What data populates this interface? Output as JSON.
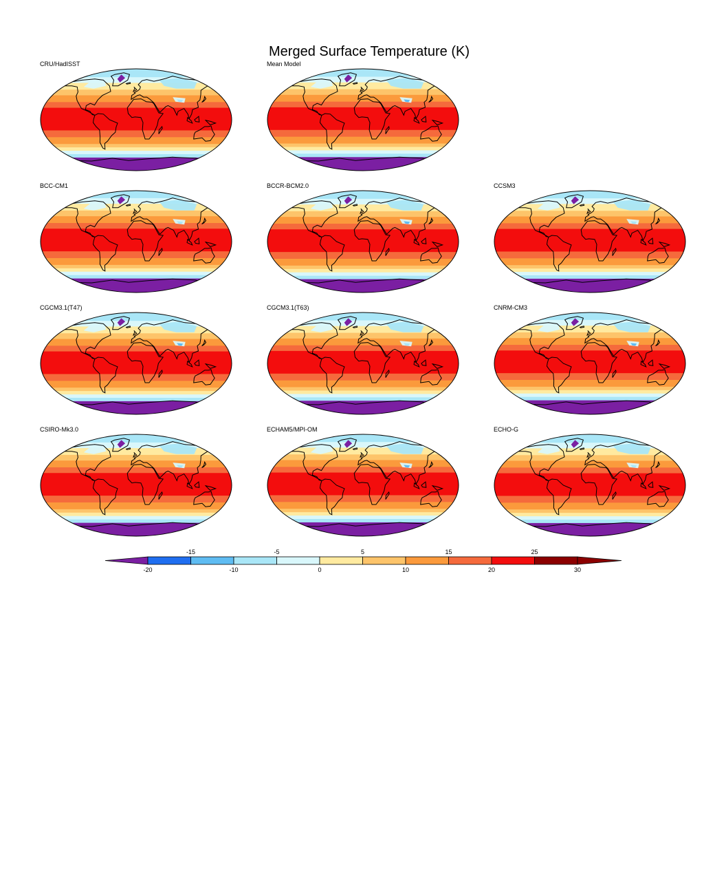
{
  "title": "Merged Surface Temperature (K)",
  "panels": [
    {
      "label": "CRU/HadISST",
      "row": 0,
      "col": 0,
      "variant": 0
    },
    {
      "label": "Mean Model",
      "row": 0,
      "col": 1,
      "variant": 1
    },
    {
      "label": "BCC-CM1",
      "row": 1,
      "col": 0,
      "variant": 2
    },
    {
      "label": "BCCR-BCM2.0",
      "row": 1,
      "col": 1,
      "variant": 3
    },
    {
      "label": "CCSM3",
      "row": 1,
      "col": 2,
      "variant": 4
    },
    {
      "label": "CGCM3.1(T47)",
      "row": 2,
      "col": 0,
      "variant": 5
    },
    {
      "label": "CGCM3.1(T63)",
      "row": 2,
      "col": 1,
      "variant": 6
    },
    {
      "label": "CNRM-CM3",
      "row": 2,
      "col": 2,
      "variant": 7
    },
    {
      "label": "CSIRO-Mk3.0",
      "row": 3,
      "col": 0,
      "variant": 8
    },
    {
      "label": "ECHAM5/MPI-OM",
      "row": 3,
      "col": 1,
      "variant": 9
    },
    {
      "label": "ECHO-G",
      "row": 3,
      "col": 2,
      "variant": 10
    }
  ],
  "colorbar": {
    "levels": [
      -20,
      -15,
      -10,
      -5,
      0,
      5,
      10,
      15,
      20,
      25,
      30
    ],
    "labels_top": [
      "-15",
      "-5",
      "5",
      "15",
      "25"
    ],
    "labels_bottom": [
      "-20",
      "-10",
      "0",
      "10",
      "20",
      "30"
    ],
    "colors": [
      "#7b1fa2",
      "#1f6ef0",
      "#5fbcf2",
      "#a9e6f7",
      "#d9f7fb",
      "#ffeaa0",
      "#fdc46a",
      "#fb9a3c",
      "#f56a3c",
      "#f30d0d",
      "#8c0000"
    ]
  }
}
